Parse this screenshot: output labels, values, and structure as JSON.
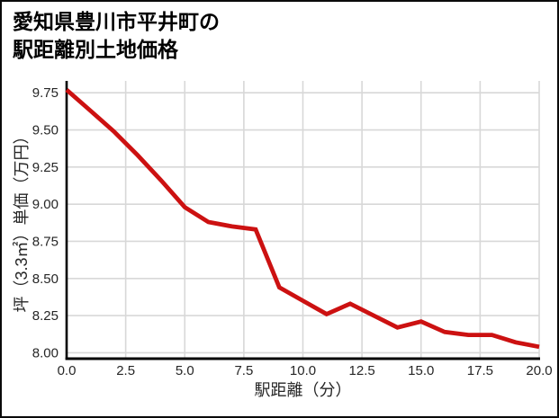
{
  "page": {
    "background": "#ffffff",
    "border_color": "#0a0a0a"
  },
  "chart_data": {
    "type": "line",
    "title": "愛知県豊川市平井町の駅距離別土地価格",
    "title_lines": [
      "愛知県豊川市平井町の",
      "駅距離別土地価格"
    ],
    "xlabel": "駅距離（分）",
    "ylabel": "坪（3.3㎡）単価（万円）",
    "series_name": "駅距離別土地価格",
    "x": [
      0,
      1,
      2,
      3,
      4,
      5,
      6,
      7,
      8,
      9,
      10,
      11,
      12,
      13,
      14,
      15,
      16,
      17,
      18,
      19,
      20
    ],
    "values": [
      9.77,
      9.63,
      9.49,
      9.33,
      9.16,
      8.98,
      8.88,
      8.85,
      8.83,
      8.44,
      8.35,
      8.26,
      8.33,
      8.25,
      8.17,
      8.21,
      8.14,
      8.12,
      8.12,
      8.07,
      8.04
    ],
    "xlim": [
      0,
      20
    ],
    "ylim": [
      7.96,
      9.83
    ],
    "xtick_values": [
      0,
      2.5,
      5,
      7.5,
      10,
      12.5,
      15,
      17.5,
      20
    ],
    "xtick_labels": [
      "0.0",
      "2.5",
      "5.0",
      "7.5",
      "10.0",
      "12.5",
      "15.0",
      "17.5",
      "20.0"
    ],
    "ytick_values": [
      8.0,
      8.25,
      8.5,
      8.75,
      9.0,
      9.25,
      9.5,
      9.75
    ],
    "ytick_labels": [
      "8.00",
      "8.25",
      "8.50",
      "8.75",
      "9.00",
      "9.25",
      "9.50",
      "9.75"
    ],
    "grid": true,
    "legend_position": "none",
    "line_color": "#cc1111",
    "axis_color": "#000000",
    "grid_color": "#d8d8d8",
    "tick_text_color": "#262626"
  }
}
